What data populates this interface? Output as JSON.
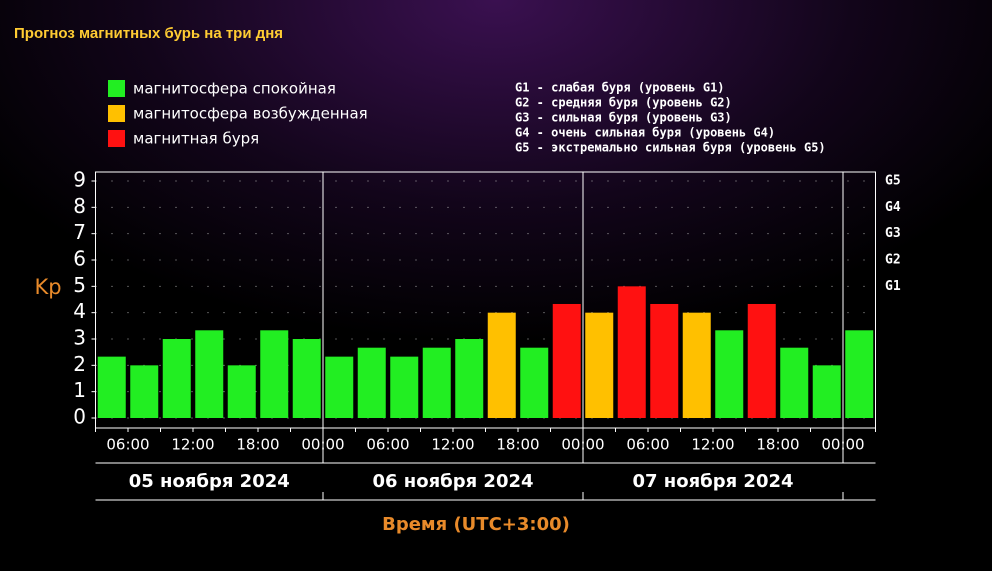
{
  "chart_data": {
    "type": "bar",
    "title": "Прогноз магнитных бурь на три дня",
    "legend": [
      {
        "label": "магнитосфера спокойная",
        "color": "#22ee22"
      },
      {
        "label": "магнитосфера возбужденная",
        "color": "#ffc000"
      },
      {
        "label": "магнитная буря",
        "color": "#ff1111"
      }
    ],
    "storm_levels": [
      "G1 - слабая буря (уровень G1)",
      "G2 - средняя буря (уровень G2)",
      "G3 - сильная буря (уровень G3)",
      "G4 - очень сильная буря (уровень G4)",
      "G5 - экстремально сильная буря (уровень G5)"
    ],
    "ylabel": "Kp",
    "xlabel": "Время (UTC+3:00)",
    "values": [
      2.33,
      2,
      3,
      3.33,
      2,
      3.33,
      3,
      2.33,
      2.67,
      2.33,
      2.67,
      3,
      4,
      2.67,
      4.33,
      4,
      5,
      4.33,
      4,
      3.33,
      4.33,
      2.67,
      2,
      3.33
    ],
    "colors": [
      "#22ee22",
      "#22ee22",
      "#22ee22",
      "#22ee22",
      "#22ee22",
      "#22ee22",
      "#22ee22",
      "#22ee22",
      "#22ee22",
      "#22ee22",
      "#22ee22",
      "#22ee22",
      "#ffc000",
      "#22ee22",
      "#ff1111",
      "#ffc000",
      "#ff1111",
      "#ff1111",
      "#ffc000",
      "#22ee22",
      "#ff1111",
      "#22ee22",
      "#22ee22",
      "#22ee22"
    ],
    "time_labels": [
      "06:00",
      "12:00",
      "18:00",
      "00:00",
      "06:00",
      "12:00",
      "18:00",
      "00:00",
      "06:00",
      "12:00",
      "18:00",
      "00:00"
    ],
    "days": [
      "05 ноября 2024",
      "06 ноября 2024",
      "07 ноября 2024"
    ],
    "ylim": [
      0,
      9
    ],
    "yticks": [
      0,
      1,
      2,
      3,
      4,
      5,
      6,
      7,
      8,
      9
    ],
    "y2ticks": [
      {
        "value": 5,
        "label": "G1"
      },
      {
        "value": 6,
        "label": "G2"
      },
      {
        "value": 7,
        "label": "G3"
      },
      {
        "value": 8,
        "label": "G4"
      },
      {
        "value": 9,
        "label": "G5"
      }
    ],
    "grid": true
  }
}
